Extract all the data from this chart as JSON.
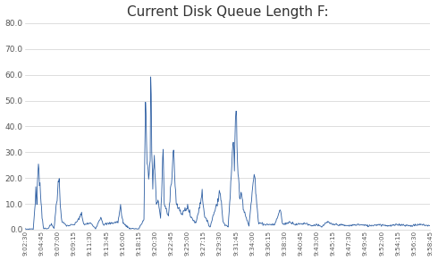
{
  "title": "Current Disk Queue Length F:",
  "title_fontsize": 11,
  "line_color": "#2E5FA3",
  "background_color": "#ffffff",
  "ylim": [
    0,
    80
  ],
  "yticks": [
    0.0,
    10.0,
    20.0,
    30.0,
    40.0,
    50.0,
    60.0,
    70.0,
    80.0
  ],
  "x_labels": [
    "9:02:30",
    "9:04:45",
    "9:07:00",
    "9:09:15",
    "9:11:30",
    "9:13:45",
    "9:16:00",
    "9:18:15",
    "9:20:30",
    "9:22:45",
    "9:25:00",
    "9:27:15",
    "9:29:30",
    "9:31:45",
    "9:34:00",
    "9:36:15",
    "9:38:30",
    "9:40:45",
    "9:43:00",
    "9:45:15",
    "9:47:30",
    "9:49:45",
    "9:52:00",
    "9:54:15",
    "9:56:30",
    "9:58:45"
  ],
  "num_points": 780,
  "keypoints": [
    [
      0,
      0.2
    ],
    [
      15,
      0.3
    ],
    [
      18,
      8.0
    ],
    [
      20,
      15.0
    ],
    [
      22,
      10.0
    ],
    [
      25,
      28.0
    ],
    [
      27,
      20.0
    ],
    [
      29,
      14.0
    ],
    [
      32,
      5.0
    ],
    [
      35,
      0.5
    ],
    [
      42,
      0.3
    ],
    [
      50,
      2.0
    ],
    [
      55,
      0.5
    ],
    [
      65,
      21.0
    ],
    [
      67,
      10.0
    ],
    [
      70,
      3.0
    ],
    [
      80,
      1.5
    ],
    [
      95,
      2.0
    ],
    [
      108,
      6.0
    ],
    [
      112,
      2.0
    ],
    [
      125,
      2.5
    ],
    [
      135,
      0.5
    ],
    [
      145,
      5.0
    ],
    [
      150,
      2.0
    ],
    [
      165,
      2.5
    ],
    [
      178,
      3.0
    ],
    [
      183,
      9.0
    ],
    [
      188,
      2.5
    ],
    [
      200,
      0.5
    ],
    [
      218,
      0.3
    ],
    [
      228,
      4.0
    ],
    [
      231,
      51.0
    ],
    [
      234,
      25.0
    ],
    [
      237,
      20.0
    ],
    [
      240,
      27.0
    ],
    [
      241,
      67.0
    ],
    [
      243,
      30.0
    ],
    [
      245,
      17.0
    ],
    [
      248,
      29.0
    ],
    [
      252,
      10.0
    ],
    [
      256,
      11.0
    ],
    [
      260,
      4.0
    ],
    [
      265,
      31.0
    ],
    [
      267,
      10.0
    ],
    [
      275,
      5.0
    ],
    [
      285,
      31.0
    ],
    [
      290,
      10.0
    ],
    [
      300,
      6.0
    ],
    [
      312,
      9.0
    ],
    [
      318,
      5.0
    ],
    [
      328,
      2.5
    ],
    [
      340,
      14.0
    ],
    [
      345,
      5.0
    ],
    [
      355,
      1.0
    ],
    [
      375,
      15.0
    ],
    [
      380,
      3.0
    ],
    [
      390,
      1.0
    ],
    [
      400,
      34.0
    ],
    [
      402,
      25.0
    ],
    [
      405,
      51.0
    ],
    [
      408,
      25.0
    ],
    [
      412,
      13.0
    ],
    [
      416,
      14.0
    ],
    [
      420,
      8.0
    ],
    [
      430,
      1.5
    ],
    [
      440,
      22.0
    ],
    [
      448,
      3.0
    ],
    [
      460,
      2.0
    ],
    [
      480,
      2.0
    ],
    [
      490,
      8.0
    ],
    [
      495,
      2.0
    ],
    [
      510,
      3.0
    ],
    [
      520,
      2.0
    ],
    [
      540,
      2.5
    ],
    [
      550,
      1.5
    ],
    [
      560,
      2.0
    ],
    [
      570,
      1.0
    ],
    [
      580,
      3.0
    ],
    [
      590,
      2.0
    ],
    [
      600,
      2.0
    ],
    [
      620,
      1.5
    ],
    [
      640,
      2.0
    ],
    [
      660,
      1.5
    ],
    [
      680,
      2.0
    ],
    [
      700,
      1.5
    ],
    [
      720,
      2.0
    ],
    [
      740,
      1.5
    ],
    [
      760,
      2.0
    ],
    [
      779,
      1.5
    ]
  ]
}
